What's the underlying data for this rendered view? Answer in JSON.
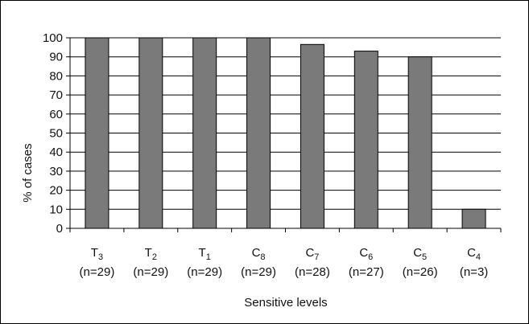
{
  "chart_data": {
    "type": "bar",
    "title": "",
    "xlabel": "Sensitive levels",
    "ylabel": "% of cases",
    "ylim": [
      0,
      100
    ],
    "yticks": [
      0,
      10,
      20,
      30,
      40,
      50,
      60,
      70,
      80,
      90,
      100
    ],
    "grid": true,
    "legend": "none",
    "bar_color": "#7a7a7a",
    "categories": [
      {
        "letter": "T",
        "sub": "3",
        "n": "(n=29)"
      },
      {
        "letter": "T",
        "sub": "2",
        "n": "(n=29)"
      },
      {
        "letter": "T",
        "sub": "1",
        "n": "(n=29)"
      },
      {
        "letter": "C",
        "sub": "8",
        "n": "(n=29)"
      },
      {
        "letter": "C",
        "sub": "7",
        "n": "(n=28)"
      },
      {
        "letter": "C",
        "sub": "6",
        "n": "(n=27)"
      },
      {
        "letter": "C",
        "sub": "5",
        "n": "(n=26)"
      },
      {
        "letter": "C",
        "sub": "4",
        "n": "(n=3)"
      }
    ],
    "values": [
      100,
      100,
      100,
      100,
      96.5,
      93,
      90,
      10
    ]
  }
}
